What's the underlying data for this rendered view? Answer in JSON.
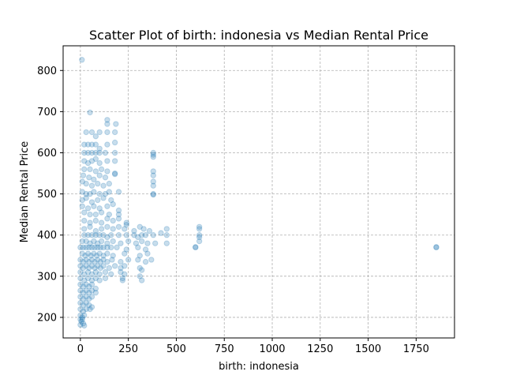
{
  "chart_data": {
    "type": "scatter",
    "title": "Scatter Plot of birth: indonesia vs Median Rental Price",
    "xlabel": "birth: indonesia",
    "ylabel": "Median Rental Price",
    "xlim": [
      -90,
      1950
    ],
    "ylim": [
      150,
      860
    ],
    "xticks": [
      0,
      250,
      500,
      750,
      1000,
      1250,
      1500,
      1750
    ],
    "yticks": [
      200,
      300,
      400,
      500,
      600,
      700,
      800
    ],
    "grid": true,
    "point_color": "#1f77b4",
    "point_alpha": 0.25,
    "series": [
      {
        "values": [
          {
            "x": 8,
            "y": 826
          },
          {
            "x": 50,
            "y": 698
          },
          {
            "x": 140,
            "y": 680
          },
          {
            "x": 140,
            "y": 670
          },
          {
            "x": 185,
            "y": 670
          },
          {
            "x": 30,
            "y": 650
          },
          {
            "x": 60,
            "y": 650
          },
          {
            "x": 80,
            "y": 640
          },
          {
            "x": 100,
            "y": 650
          },
          {
            "x": 140,
            "y": 650
          },
          {
            "x": 180,
            "y": 650
          },
          {
            "x": 20,
            "y": 620
          },
          {
            "x": 40,
            "y": 620
          },
          {
            "x": 60,
            "y": 620
          },
          {
            "x": 80,
            "y": 620
          },
          {
            "x": 100,
            "y": 610
          },
          {
            "x": 140,
            "y": 620
          },
          {
            "x": 180,
            "y": 625
          },
          {
            "x": 20,
            "y": 600
          },
          {
            "x": 40,
            "y": 600
          },
          {
            "x": 60,
            "y": 600
          },
          {
            "x": 80,
            "y": 600
          },
          {
            "x": 100,
            "y": 600
          },
          {
            "x": 130,
            "y": 600
          },
          {
            "x": 180,
            "y": 600
          },
          {
            "x": 380,
            "y": 600
          },
          {
            "x": 380,
            "y": 595
          },
          {
            "x": 380,
            "y": 590
          },
          {
            "x": 20,
            "y": 580
          },
          {
            "x": 40,
            "y": 575
          },
          {
            "x": 60,
            "y": 580
          },
          {
            "x": 80,
            "y": 585
          },
          {
            "x": 100,
            "y": 575
          },
          {
            "x": 140,
            "y": 580
          },
          {
            "x": 180,
            "y": 580
          },
          {
            "x": 20,
            "y": 560
          },
          {
            "x": 50,
            "y": 560
          },
          {
            "x": 80,
            "y": 555
          },
          {
            "x": 110,
            "y": 560
          },
          {
            "x": 140,
            "y": 555
          },
          {
            "x": 380,
            "y": 555
          },
          {
            "x": 380,
            "y": 545
          },
          {
            "x": 15,
            "y": 545
          },
          {
            "x": 45,
            "y": 540
          },
          {
            "x": 70,
            "y": 535
          },
          {
            "x": 100,
            "y": 545
          },
          {
            "x": 130,
            "y": 540
          },
          {
            "x": 180,
            "y": 550
          },
          {
            "x": 180,
            "y": 548
          },
          {
            "x": 10,
            "y": 530
          },
          {
            "x": 30,
            "y": 525
          },
          {
            "x": 60,
            "y": 520
          },
          {
            "x": 90,
            "y": 525
          },
          {
            "x": 120,
            "y": 520
          },
          {
            "x": 150,
            "y": 525
          },
          {
            "x": 380,
            "y": 530
          },
          {
            "x": 380,
            "y": 520
          },
          {
            "x": 10,
            "y": 505
          },
          {
            "x": 30,
            "y": 500
          },
          {
            "x": 50,
            "y": 500
          },
          {
            "x": 70,
            "y": 505
          },
          {
            "x": 100,
            "y": 500
          },
          {
            "x": 130,
            "y": 500
          },
          {
            "x": 150,
            "y": 505
          },
          {
            "x": 200,
            "y": 505
          },
          {
            "x": 380,
            "y": 500
          },
          {
            "x": 380,
            "y": 498
          },
          {
            "x": 10,
            "y": 485
          },
          {
            "x": 30,
            "y": 490
          },
          {
            "x": 60,
            "y": 480
          },
          {
            "x": 90,
            "y": 485
          },
          {
            "x": 120,
            "y": 490
          },
          {
            "x": 160,
            "y": 485
          },
          {
            "x": 10,
            "y": 470
          },
          {
            "x": 40,
            "y": 465
          },
          {
            "x": 70,
            "y": 470
          },
          {
            "x": 100,
            "y": 465
          },
          {
            "x": 140,
            "y": 470
          },
          {
            "x": 170,
            "y": 475
          },
          {
            "x": 20,
            "y": 455
          },
          {
            "x": 50,
            "y": 450
          },
          {
            "x": 80,
            "y": 450
          },
          {
            "x": 110,
            "y": 455
          },
          {
            "x": 150,
            "y": 450
          },
          {
            "x": 200,
            "y": 460
          },
          {
            "x": 200,
            "y": 450
          },
          {
            "x": 20,
            "y": 435
          },
          {
            "x": 50,
            "y": 430
          },
          {
            "x": 80,
            "y": 435
          },
          {
            "x": 110,
            "y": 430
          },
          {
            "x": 140,
            "y": 440
          },
          {
            "x": 170,
            "y": 435
          },
          {
            "x": 200,
            "y": 440
          },
          {
            "x": 240,
            "y": 430
          },
          {
            "x": 240,
            "y": 425
          },
          {
            "x": 20,
            "y": 415
          },
          {
            "x": 50,
            "y": 420
          },
          {
            "x": 80,
            "y": 410
          },
          {
            "x": 110,
            "y": 415
          },
          {
            "x": 140,
            "y": 420
          },
          {
            "x": 170,
            "y": 415
          },
          {
            "x": 200,
            "y": 420
          },
          {
            "x": 230,
            "y": 415
          },
          {
            "x": 280,
            "y": 410
          },
          {
            "x": 310,
            "y": 420
          },
          {
            "x": 330,
            "y": 415
          },
          {
            "x": 360,
            "y": 410
          },
          {
            "x": 420,
            "y": 405
          },
          {
            "x": 450,
            "y": 415
          },
          {
            "x": 620,
            "y": 420
          },
          {
            "x": 620,
            "y": 415
          },
          {
            "x": 20,
            "y": 400
          },
          {
            "x": 40,
            "y": 400
          },
          {
            "x": 60,
            "y": 400
          },
          {
            "x": 80,
            "y": 400
          },
          {
            "x": 100,
            "y": 400
          },
          {
            "x": 120,
            "y": 400
          },
          {
            "x": 140,
            "y": 395
          },
          {
            "x": 160,
            "y": 400
          },
          {
            "x": 200,
            "y": 400
          },
          {
            "x": 240,
            "y": 400
          },
          {
            "x": 280,
            "y": 400
          },
          {
            "x": 300,
            "y": 395
          },
          {
            "x": 320,
            "y": 400
          },
          {
            "x": 340,
            "y": 400
          },
          {
            "x": 380,
            "y": 400
          },
          {
            "x": 450,
            "y": 400
          },
          {
            "x": 620,
            "y": 400
          },
          {
            "x": 620,
            "y": 395
          },
          {
            "x": 10,
            "y": 385
          },
          {
            "x": 30,
            "y": 385
          },
          {
            "x": 50,
            "y": 380
          },
          {
            "x": 70,
            "y": 385
          },
          {
            "x": 90,
            "y": 380
          },
          {
            "x": 110,
            "y": 385
          },
          {
            "x": 140,
            "y": 380
          },
          {
            "x": 170,
            "y": 385
          },
          {
            "x": 210,
            "y": 380
          },
          {
            "x": 250,
            "y": 385
          },
          {
            "x": 290,
            "y": 380
          },
          {
            "x": 320,
            "y": 385
          },
          {
            "x": 350,
            "y": 380
          },
          {
            "x": 390,
            "y": 380
          },
          {
            "x": 450,
            "y": 380
          },
          {
            "x": 620,
            "y": 385
          },
          {
            "x": 0,
            "y": 370
          },
          {
            "x": 15,
            "y": 370
          },
          {
            "x": 30,
            "y": 370
          },
          {
            "x": 45,
            "y": 370
          },
          {
            "x": 60,
            "y": 370
          },
          {
            "x": 75,
            "y": 370
          },
          {
            "x": 90,
            "y": 370
          },
          {
            "x": 105,
            "y": 370
          },
          {
            "x": 120,
            "y": 370
          },
          {
            "x": 140,
            "y": 370
          },
          {
            "x": 160,
            "y": 370
          },
          {
            "x": 190,
            "y": 370
          },
          {
            "x": 240,
            "y": 365
          },
          {
            "x": 300,
            "y": 370
          },
          {
            "x": 340,
            "y": 365
          },
          {
            "x": 600,
            "y": 370
          },
          {
            "x": 600,
            "y": 371
          },
          {
            "x": 1855,
            "y": 370
          },
          {
            "x": 1855,
            "y": 371
          },
          {
            "x": 10,
            "y": 355
          },
          {
            "x": 25,
            "y": 350
          },
          {
            "x": 40,
            "y": 355
          },
          {
            "x": 55,
            "y": 350
          },
          {
            "x": 70,
            "y": 355
          },
          {
            "x": 85,
            "y": 350
          },
          {
            "x": 100,
            "y": 355
          },
          {
            "x": 120,
            "y": 350
          },
          {
            "x": 140,
            "y": 355
          },
          {
            "x": 170,
            "y": 350
          },
          {
            "x": 230,
            "y": 355
          },
          {
            "x": 310,
            "y": 350
          },
          {
            "x": 350,
            "y": 355
          },
          {
            "x": 0,
            "y": 340
          },
          {
            "x": 15,
            "y": 335
          },
          {
            "x": 30,
            "y": 340
          },
          {
            "x": 45,
            "y": 335
          },
          {
            "x": 60,
            "y": 340
          },
          {
            "x": 75,
            "y": 335
          },
          {
            "x": 90,
            "y": 340
          },
          {
            "x": 105,
            "y": 335
          },
          {
            "x": 120,
            "y": 340
          },
          {
            "x": 140,
            "y": 335
          },
          {
            "x": 165,
            "y": 340
          },
          {
            "x": 210,
            "y": 335
          },
          {
            "x": 250,
            "y": 340
          },
          {
            "x": 300,
            "y": 340
          },
          {
            "x": 340,
            "y": 335
          },
          {
            "x": 370,
            "y": 340
          },
          {
            "x": 0,
            "y": 325
          },
          {
            "x": 15,
            "y": 320
          },
          {
            "x": 30,
            "y": 325
          },
          {
            "x": 45,
            "y": 320
          },
          {
            "x": 60,
            "y": 325
          },
          {
            "x": 75,
            "y": 320
          },
          {
            "x": 90,
            "y": 325
          },
          {
            "x": 105,
            "y": 320
          },
          {
            "x": 120,
            "y": 325
          },
          {
            "x": 150,
            "y": 320
          },
          {
            "x": 180,
            "y": 325
          },
          {
            "x": 210,
            "y": 320
          },
          {
            "x": 230,
            "y": 325
          },
          {
            "x": 310,
            "y": 320
          },
          {
            "x": 320,
            "y": 315
          },
          {
            "x": 0,
            "y": 310
          },
          {
            "x": 20,
            "y": 305
          },
          {
            "x": 40,
            "y": 310
          },
          {
            "x": 60,
            "y": 305
          },
          {
            "x": 80,
            "y": 310
          },
          {
            "x": 100,
            "y": 305
          },
          {
            "x": 130,
            "y": 310
          },
          {
            "x": 160,
            "y": 305
          },
          {
            "x": 210,
            "y": 310
          },
          {
            "x": 230,
            "y": 305
          },
          {
            "x": 310,
            "y": 300
          },
          {
            "x": 0,
            "y": 295
          },
          {
            "x": 20,
            "y": 290
          },
          {
            "x": 40,
            "y": 295
          },
          {
            "x": 60,
            "y": 290
          },
          {
            "x": 80,
            "y": 295
          },
          {
            "x": 100,
            "y": 290
          },
          {
            "x": 130,
            "y": 295
          },
          {
            "x": 220,
            "y": 290
          },
          {
            "x": 220,
            "y": 295
          },
          {
            "x": 320,
            "y": 290
          },
          {
            "x": 0,
            "y": 280
          },
          {
            "x": 15,
            "y": 275
          },
          {
            "x": 30,
            "y": 280
          },
          {
            "x": 45,
            "y": 275
          },
          {
            "x": 60,
            "y": 280
          },
          {
            "x": 80,
            "y": 270
          },
          {
            "x": 0,
            "y": 265
          },
          {
            "x": 15,
            "y": 260
          },
          {
            "x": 30,
            "y": 265
          },
          {
            "x": 45,
            "y": 260
          },
          {
            "x": 60,
            "y": 265
          },
          {
            "x": 80,
            "y": 260
          },
          {
            "x": 0,
            "y": 250
          },
          {
            "x": 15,
            "y": 245
          },
          {
            "x": 30,
            "y": 250
          },
          {
            "x": 45,
            "y": 245
          },
          {
            "x": 60,
            "y": 250
          },
          {
            "x": 0,
            "y": 235
          },
          {
            "x": 15,
            "y": 230
          },
          {
            "x": 30,
            "y": 235
          },
          {
            "x": 45,
            "y": 230
          },
          {
            "x": 60,
            "y": 225
          },
          {
            "x": 0,
            "y": 220
          },
          {
            "x": 15,
            "y": 215
          },
          {
            "x": 30,
            "y": 220
          },
          {
            "x": 50,
            "y": 220
          },
          {
            "x": 0,
            "y": 205
          },
          {
            "x": 10,
            "y": 200
          },
          {
            "x": 20,
            "y": 205
          },
          {
            "x": 0,
            "y": 195
          },
          {
            "x": 5,
            "y": 190
          },
          {
            "x": 10,
            "y": 195
          },
          {
            "x": 15,
            "y": 185
          },
          {
            "x": 0,
            "y": 182
          },
          {
            "x": 20,
            "y": 180
          }
        ]
      }
    ]
  }
}
